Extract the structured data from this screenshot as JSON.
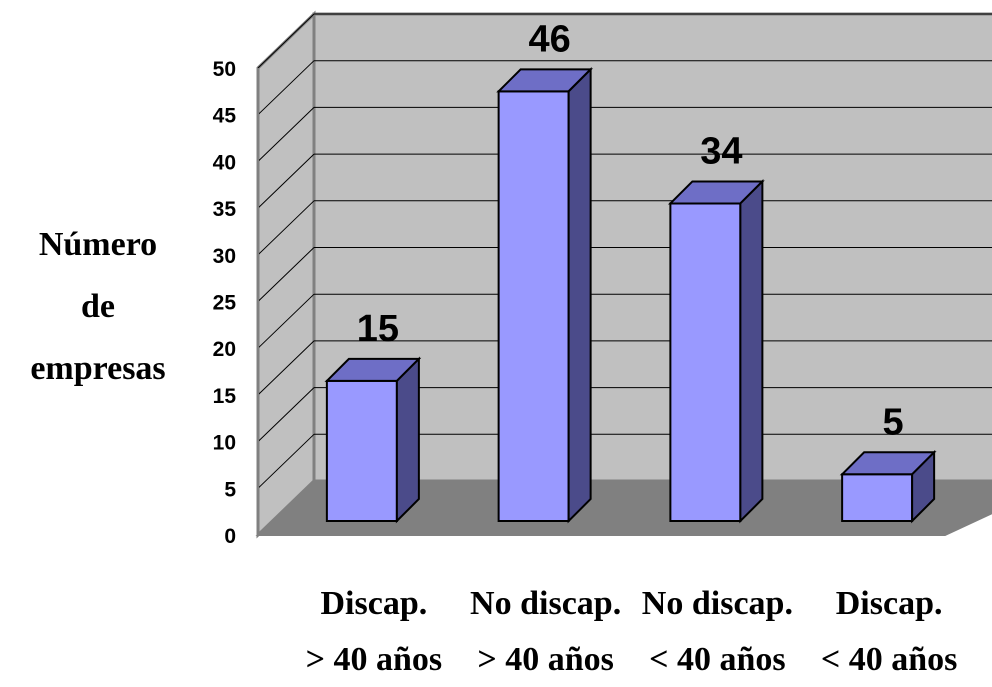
{
  "chart_data": {
    "type": "bar",
    "style": "3d-column",
    "categories": [
      [
        "Discap.",
        "> 40 años"
      ],
      [
        "No discap.",
        "> 40 años"
      ],
      [
        "No discap.",
        "< 40 años"
      ],
      [
        "Discap.",
        "< 40 años"
      ]
    ],
    "values": [
      15,
      46,
      34,
      5
    ],
    "ylabel": [
      "Número",
      "de",
      "empresas"
    ],
    "xlabel": "",
    "title": "",
    "ylim": [
      0,
      50
    ],
    "yticks": [
      0,
      5,
      10,
      15,
      20,
      25,
      30,
      35,
      40,
      45,
      50
    ],
    "grid": true,
    "legend": "none",
    "colors": {
      "bar_front": "#9999ff",
      "bar_top": "#6e6ec6",
      "bar_side": "#4b4b8a",
      "back_wall": "#c0c0c0",
      "floor": "#808080",
      "gridline": "#000000"
    }
  }
}
